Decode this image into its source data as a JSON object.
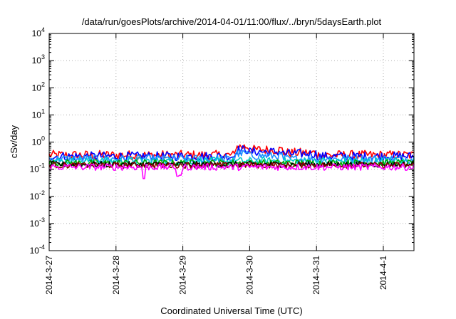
{
  "chart_data": {
    "type": "line",
    "title": "/data/run/goesPlots/archive/2014-04-01/11:00/flux/../bryn/5daysEarth.plot",
    "xlabel": "Coordinated Universal Time (UTC)",
    "ylabel": "cSv/day",
    "yscale": "log",
    "ylim": [
      0.0001,
      10000
    ],
    "y_ticks": [
      {
        "base": "10",
        "exp": "-4",
        "value": 0.0001
      },
      {
        "base": "10",
        "exp": "-3",
        "value": 0.001
      },
      {
        "base": "10",
        "exp": "-2",
        "value": 0.01
      },
      {
        "base": "10",
        "exp": "-1",
        "value": 0.1
      },
      {
        "base": "10",
        "exp": "0",
        "value": 1
      },
      {
        "base": "10",
        "exp": "1",
        "value": 10
      },
      {
        "base": "10",
        "exp": "2",
        "value": 100
      },
      {
        "base": "10",
        "exp": "3",
        "value": 1000
      },
      {
        "base": "10",
        "exp": "4",
        "value": 10000
      }
    ],
    "x_range_days": [
      "2014-03-27T00:00",
      "2014-04-01T11:00"
    ],
    "x_ticks": [
      "2014-3-27",
      "2014-3-28",
      "2014-3-29",
      "2014-3-30",
      "2014-3-31",
      "2014-4-1"
    ],
    "grid": true,
    "legend": "none",
    "series": [
      {
        "color": "#ff0000",
        "base": 0.33,
        "jitter": 0.35,
        "bumps": [
          {
            "from": "2014-03-29T19:00",
            "to": "2014-03-30T00:00",
            "value": 0.68
          },
          {
            "from": "2014-03-30T00:00",
            "to": "2014-03-30T12:00",
            "value": 0.52
          },
          {
            "from": "2014-03-30T12:00",
            "to": "2014-03-31T00:00",
            "value": 0.4
          }
        ]
      },
      {
        "color": "#0000ff",
        "base": 0.3,
        "jitter": 0.33,
        "bumps": [
          {
            "from": "2014-03-29T19:00",
            "to": "2014-03-30T00:00",
            "value": 0.52
          },
          {
            "from": "2014-03-30T00:00",
            "to": "2014-03-30T12:00",
            "value": 0.44
          },
          {
            "from": "2014-03-30T12:00",
            "to": "2014-03-31T00:00",
            "value": 0.37
          }
        ]
      },
      {
        "color": "#1e90ff",
        "base": 0.24,
        "jitter": 0.3,
        "bumps": [
          {
            "from": "2014-03-29T19:00",
            "to": "2014-03-30T00:00",
            "value": 0.38
          },
          {
            "from": "2014-03-30T00:00",
            "to": "2014-03-30T12:00",
            "value": 0.31
          }
        ]
      },
      {
        "color": "#00cccc",
        "base": 0.2,
        "jitter": 0.28,
        "bumps": []
      },
      {
        "color": "#00aa00",
        "base": 0.17,
        "jitter": 0.25,
        "bumps": []
      },
      {
        "color": "#000000",
        "base": 0.15,
        "jitter": 0.22,
        "bumps": []
      },
      {
        "color": "#8b0000",
        "base": 0.14,
        "jitter": 0.22,
        "bumps": []
      },
      {
        "color": "#ff00ff",
        "base": 0.12,
        "jitter": 0.25,
        "dips": [
          {
            "at": "2014-03-28T10:00",
            "value": 0.045
          },
          {
            "at": "2014-03-28T22:00",
            "value": 0.055
          },
          {
            "at": "2014-03-28T23:00",
            "value": 0.06
          }
        ]
      }
    ]
  }
}
